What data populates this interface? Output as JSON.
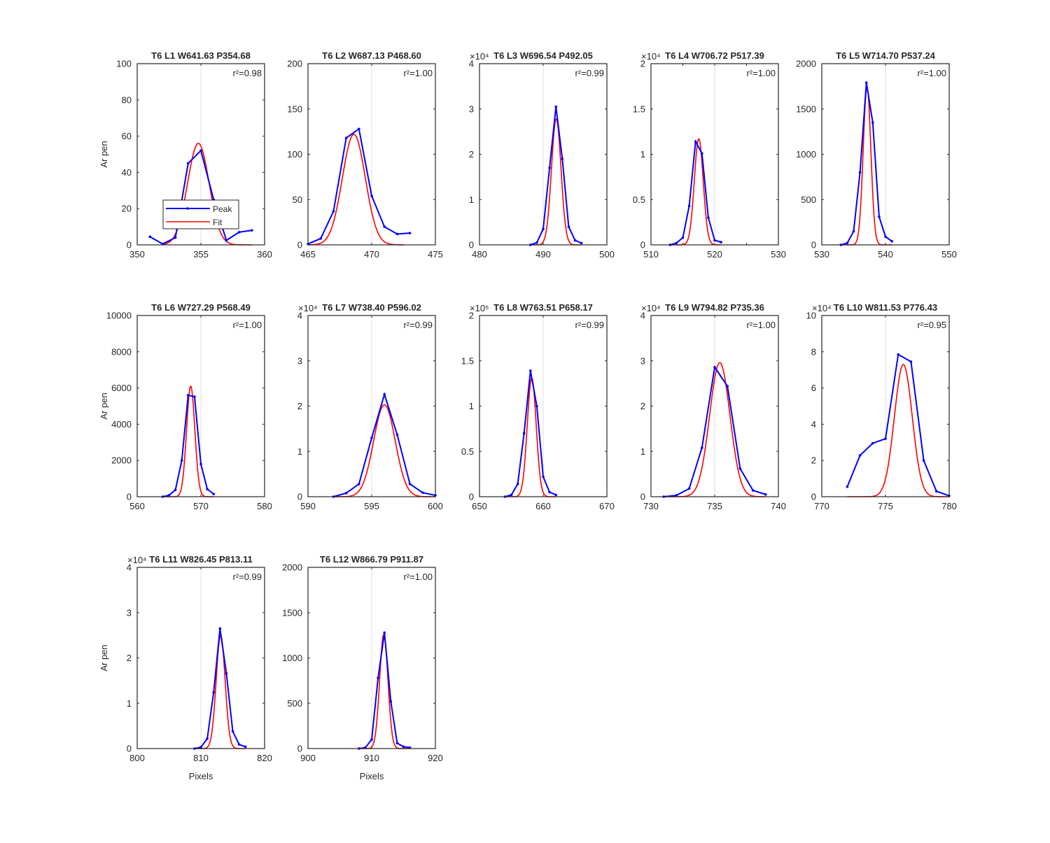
{
  "ylabel": "Ar pen",
  "xlabel": "Pixels",
  "legend": {
    "peak": "Peak",
    "fit": "Fit"
  },
  "colors": {
    "peak": "#0000ff",
    "fit": "#ff0000",
    "axis": "#262626",
    "grid": "#dfdfdf"
  },
  "chart_data": [
    {
      "type": "line",
      "title": "T6 L1 W641.63 P354.68",
      "r2": "r²=0.98",
      "xlim": [
        350,
        360
      ],
      "ylim": [
        0,
        100
      ],
      "xticks": [
        350,
        355,
        360
      ],
      "xtick_labels": [
        "350",
        "355",
        "360"
      ],
      "yticks": [
        0,
        20,
        40,
        60,
        80,
        100
      ],
      "ytick_labels": [
        "0",
        "20",
        "40",
        "60",
        "80",
        "100"
      ],
      "exponent": "",
      "grid_x": 355,
      "peak": {
        "x": [
          351,
          352,
          353,
          354,
          355,
          356,
          357,
          358,
          359
        ],
        "y": [
          4.5,
          0.5,
          4,
          45,
          52,
          25,
          2.5,
          7,
          8
        ]
      },
      "fit": {
        "mu": 354.8,
        "sigma": 0.85,
        "amp": 56,
        "xrange": [
          352,
          359
        ]
      }
    },
    {
      "type": "line",
      "title": "T6 L2 W687.13 P468.60",
      "r2": "r²=1.00",
      "xlim": [
        465,
        475
      ],
      "ylim": [
        0,
        200
      ],
      "xticks": [
        465,
        470,
        475
      ],
      "xtick_labels": [
        "465",
        "470",
        "475"
      ],
      "yticks": [
        0,
        50,
        100,
        150,
        200
      ],
      "ytick_labels": [
        "0",
        "50",
        "100",
        "150",
        "200"
      ],
      "exponent": "",
      "grid_x": 470,
      "peak": {
        "x": [
          465,
          466,
          467,
          468,
          469,
          470,
          471,
          472,
          473
        ],
        "y": [
          1,
          7,
          37,
          118,
          128,
          54,
          20,
          12,
          13
        ]
      },
      "fit": {
        "mu": 468.6,
        "sigma": 0.9,
        "amp": 122,
        "xrange": [
          465,
          472.5
        ]
      }
    },
    {
      "type": "line",
      "title": "T6 L3 W696.54 P492.05",
      "r2": "r²=0.99",
      "xlim": [
        480,
        500
      ],
      "ylim": [
        0,
        4
      ],
      "xticks": [
        480,
        490,
        500
      ],
      "xtick_labels": [
        "480",
        "490",
        "500"
      ],
      "yticks": [
        0,
        1,
        2,
        3,
        4
      ],
      "ytick_labels": [
        "0",
        "1",
        "2",
        "3",
        "4"
      ],
      "exponent": "×10⁴",
      "grid_x": 490,
      "peak": {
        "x": [
          488,
          489,
          490,
          491,
          492,
          493,
          494,
          495,
          496
        ],
        "y": [
          0,
          0.05,
          0.35,
          1.7,
          3.05,
          1.9,
          0.4,
          0.1,
          0.04
        ]
      },
      "fit": {
        "mu": 492.05,
        "sigma": 0.75,
        "amp": 2.78,
        "xrange": [
          488,
          496
        ]
      }
    },
    {
      "type": "line",
      "title": "T6 L4 W706.72 P517.39",
      "r2": "r²=1.00",
      "xlim": [
        510,
        530
      ],
      "ylim": [
        0,
        2
      ],
      "xticks": [
        510,
        515,
        520,
        525,
        530
      ],
      "xtick_labels": [
        "510",
        "",
        "520",
        "",
        "530"
      ],
      "yticks": [
        0,
        0.5,
        1,
        1.5,
        2
      ],
      "ytick_labels": [
        "0",
        "0.5",
        "1",
        "1.5",
        "2"
      ],
      "exponent": "×10⁴",
      "grid_x": 520,
      "peak": {
        "x": [
          513,
          514,
          515,
          516,
          517,
          518,
          519,
          520,
          521
        ],
        "y": [
          0,
          0.02,
          0.08,
          0.43,
          1.14,
          1.01,
          0.3,
          0.05,
          0.03
        ]
      },
      "fit": {
        "mu": 517.5,
        "sigma": 0.7,
        "amp": 1.17,
        "xrange": [
          513,
          521
        ]
      }
    },
    {
      "type": "line",
      "title": "T6 L5 W714.70 P537.24",
      "r2": "r²=1.00",
      "xlim": [
        530,
        550
      ],
      "ylim": [
        0,
        2000
      ],
      "xticks": [
        530,
        540,
        550
      ],
      "xtick_labels": [
        "530",
        "540",
        "550"
      ],
      "yticks": [
        0,
        500,
        1000,
        1500,
        2000
      ],
      "ytick_labels": [
        "0",
        "500",
        "1000",
        "1500",
        "2000"
      ],
      "exponent": "",
      "grid_x": 540,
      "peak": {
        "x": [
          533,
          534,
          535,
          536,
          537,
          538,
          539,
          540,
          541
        ],
        "y": [
          0,
          20,
          150,
          800,
          1790,
          1350,
          310,
          90,
          40
        ]
      },
      "fit": {
        "mu": 537.1,
        "sigma": 0.6,
        "amp": 1740,
        "xrange": [
          533,
          541
        ]
      }
    },
    {
      "type": "line",
      "title": "T6 L6 W727.29 P568.49",
      "r2": "r²=1.00",
      "xlim": [
        560,
        580
      ],
      "ylim": [
        0,
        10000
      ],
      "xticks": [
        560,
        570,
        580
      ],
      "xtick_labels": [
        "560",
        "570",
        "580"
      ],
      "yticks": [
        0,
        2000,
        4000,
        6000,
        8000,
        10000
      ],
      "ytick_labels": [
        "0",
        "2000",
        "4000",
        "6000",
        "8000",
        "10000"
      ],
      "exponent": "",
      "grid_x": 570,
      "peak": {
        "x": [
          564,
          565,
          566,
          567,
          568,
          569,
          570,
          571,
          572
        ],
        "y": [
          0,
          80,
          380,
          2000,
          5600,
          5520,
          1800,
          420,
          150
        ]
      },
      "fit": {
        "mu": 568.4,
        "sigma": 0.65,
        "amp": 6100,
        "xrange": [
          564,
          572
        ]
      }
    },
    {
      "type": "line",
      "title": "T6 L7 W738.40 P596.02",
      "r2": "r²=0.99",
      "xlim": [
        590,
        600
      ],
      "ylim": [
        0,
        4
      ],
      "xticks": [
        590,
        595,
        600
      ],
      "xtick_labels": [
        "590",
        "595",
        "600"
      ],
      "yticks": [
        0,
        1,
        2,
        3,
        4
      ],
      "ytick_labels": [
        "0",
        "1",
        "2",
        "3",
        "4"
      ],
      "exponent": "×10⁴",
      "grid_x": 595,
      "peak": {
        "x": [
          592,
          593,
          594,
          595,
          596,
          597,
          598,
          599,
          600
        ],
        "y": [
          0,
          0.08,
          0.28,
          1.3,
          2.26,
          1.37,
          0.28,
          0.09,
          0.03
        ]
      },
      "fit": {
        "mu": 596.0,
        "sigma": 0.85,
        "amp": 2.03,
        "xrange": [
          592,
          600
        ]
      }
    },
    {
      "type": "line",
      "title": "T6 L8 W763.51 P658.17",
      "r2": "r²=0.99",
      "xlim": [
        650,
        670
      ],
      "ylim": [
        0,
        2
      ],
      "xticks": [
        650,
        660,
        670
      ],
      "xtick_labels": [
        "650",
        "660",
        "670"
      ],
      "yticks": [
        0,
        0.5,
        1,
        1.5,
        2
      ],
      "ytick_labels": [
        "0",
        "0.5",
        "1",
        "1.5",
        "2"
      ],
      "exponent": "×10⁵",
      "grid_x": 660,
      "peak": {
        "x": [
          654,
          655,
          656,
          657,
          658,
          659,
          660,
          661,
          662
        ],
        "y": [
          0,
          0.02,
          0.14,
          0.7,
          1.39,
          1.0,
          0.22,
          0.05,
          0.02
        ]
      },
      "fit": {
        "mu": 658.2,
        "sigma": 0.7,
        "amp": 1.31,
        "xrange": [
          654,
          662
        ]
      }
    },
    {
      "type": "line",
      "title": "T6 L9 W794.82 P735.36",
      "r2": "r²=1.00",
      "xlim": [
        730,
        740
      ],
      "ylim": [
        0,
        4
      ],
      "xticks": [
        730,
        735,
        740
      ],
      "xtick_labels": [
        "730",
        "735",
        "740"
      ],
      "yticks": [
        0,
        1,
        2,
        3,
        4
      ],
      "ytick_labels": [
        "0",
        "1",
        "2",
        "3",
        "4"
      ],
      "exponent": "×10⁴",
      "grid_x": 735,
      "peak": {
        "x": [
          731,
          732,
          733,
          734,
          735,
          736,
          737,
          738,
          739
        ],
        "y": [
          0,
          0.03,
          0.18,
          1.08,
          2.86,
          2.44,
          0.62,
          0.14,
          0.05
        ]
      },
      "fit": {
        "mu": 735.4,
        "sigma": 0.8,
        "amp": 2.96,
        "xrange": [
          731,
          739
        ]
      }
    },
    {
      "type": "line",
      "title": "T6 L10 W811.53 P776.43",
      "r2": "r²=0.95",
      "xlim": [
        770,
        780
      ],
      "ylim": [
        0,
        10
      ],
      "xticks": [
        770,
        775,
        780
      ],
      "xtick_labels": [
        "770",
        "775",
        "780"
      ],
      "yticks": [
        0,
        2,
        4,
        6,
        8,
        10
      ],
      "ytick_labels": [
        "0",
        "2",
        "4",
        "6",
        "8",
        "10"
      ],
      "exponent": "×10⁴",
      "grid_x": 775,
      "peak": {
        "x": [
          772,
          773,
          774,
          775,
          776,
          777,
          778,
          779,
          780
        ],
        "y": [
          0.55,
          2.28,
          2.95,
          3.2,
          7.85,
          7.45,
          2.0,
          0.3,
          0.05
        ]
      },
      "fit": {
        "mu": 776.4,
        "sigma": 0.7,
        "amp": 7.3,
        "xrange": [
          772,
          780
        ]
      }
    },
    {
      "type": "line",
      "title": "T6 L11 W826.45 P813.11",
      "r2": "r²=0.99",
      "xlim": [
        800,
        820
      ],
      "ylim": [
        0,
        4
      ],
      "xticks": [
        800,
        810,
        820
      ],
      "xtick_labels": [
        "800",
        "810",
        "820"
      ],
      "yticks": [
        0,
        1,
        2,
        3,
        4
      ],
      "ytick_labels": [
        "0",
        "1",
        "2",
        "3",
        "4"
      ],
      "exponent": "×10⁴",
      "grid_x": 810,
      "peak": {
        "x": [
          809,
          810,
          811,
          812,
          813,
          814,
          815,
          816,
          817
        ],
        "y": [
          0,
          0.03,
          0.22,
          1.24,
          2.65,
          1.66,
          0.38,
          0.09,
          0.04
        ]
      },
      "fit": {
        "mu": 813.1,
        "sigma": 0.7,
        "amp": 2.5,
        "xrange": [
          809,
          817
        ]
      }
    },
    {
      "type": "line",
      "title": "T6 L12 W866.79 P911.87",
      "r2": "r²=1.00",
      "xlim": [
        900,
        920
      ],
      "ylim": [
        0,
        2000
      ],
      "xticks": [
        900,
        910,
        920
      ],
      "xtick_labels": [
        "900",
        "910",
        "920"
      ],
      "yticks": [
        0,
        500,
        1000,
        1500,
        2000
      ],
      "ytick_labels": [
        "0",
        "500",
        "1000",
        "1500",
        "2000"
      ],
      "exponent": "",
      "grid_x": 910,
      "peak": {
        "x": [
          908,
          909,
          910,
          911,
          912,
          913,
          914,
          915,
          916
        ],
        "y": [
          0,
          10,
          100,
          780,
          1280,
          520,
          60,
          20,
          10
        ]
      },
      "fit": {
        "mu": 911.9,
        "sigma": 0.65,
        "amp": 1260,
        "xrange": [
          908,
          916
        ]
      }
    }
  ]
}
